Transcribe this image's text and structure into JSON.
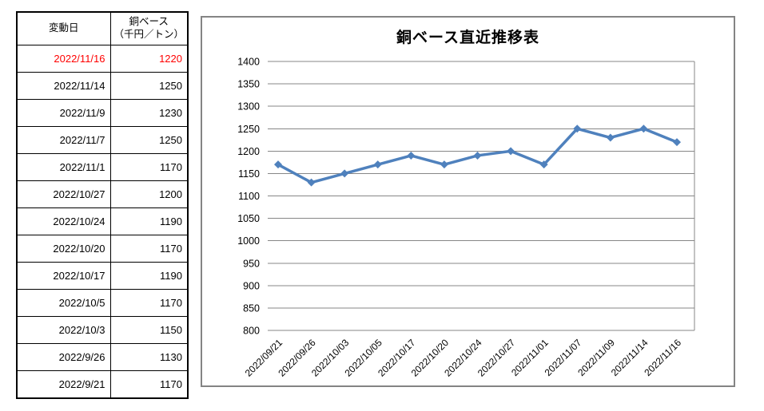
{
  "table": {
    "headers": {
      "date": "変動日",
      "value_line1": "銅ベース",
      "value_line2": "（千円／トン）"
    },
    "highlight_color": "#FF0000",
    "rows": [
      {
        "date": "2022/11/16",
        "value": "1220",
        "highlight": true
      },
      {
        "date": "2022/11/14",
        "value": "1250",
        "highlight": false
      },
      {
        "date": "2022/11/9",
        "value": "1230",
        "highlight": false
      },
      {
        "date": "2022/11/7",
        "value": "1250",
        "highlight": false
      },
      {
        "date": "2022/11/1",
        "value": "1170",
        "highlight": false
      },
      {
        "date": "2022/10/27",
        "value": "1200",
        "highlight": false
      },
      {
        "date": "2022/10/24",
        "value": "1190",
        "highlight": false
      },
      {
        "date": "2022/10/20",
        "value": "1170",
        "highlight": false
      },
      {
        "date": "2022/10/17",
        "value": "1190",
        "highlight": false
      },
      {
        "date": "2022/10/5",
        "value": "1170",
        "highlight": false
      },
      {
        "date": "2022/10/3",
        "value": "1150",
        "highlight": false
      },
      {
        "date": "2022/9/26",
        "value": "1130",
        "highlight": false
      },
      {
        "date": "2022/9/21",
        "value": "1170",
        "highlight": false
      }
    ]
  },
  "chart_data": {
    "type": "line",
    "title": "銅ベース直近推移表",
    "categories": [
      "2022/09/21",
      "2022/09/26",
      "2022/10/03",
      "2022/10/05",
      "2022/10/17",
      "2022/10/20",
      "2022/10/24",
      "2022/10/27",
      "2022/11/01",
      "2022/11/07",
      "2022/11/09",
      "2022/11/14",
      "2022/11/16"
    ],
    "values": [
      1170,
      1130,
      1150,
      1170,
      1190,
      1170,
      1190,
      1200,
      1170,
      1250,
      1230,
      1250,
      1220
    ],
    "xlabel": "",
    "ylabel": "",
    "ylim": [
      800,
      1400
    ],
    "ytick_step": 50,
    "grid": true,
    "legend_position": "none",
    "line_color": "#4F81BD",
    "marker": "diamond",
    "gridline_color": "#878787",
    "axis_label_color": "#000000",
    "panel_border_color": "#848484"
  }
}
